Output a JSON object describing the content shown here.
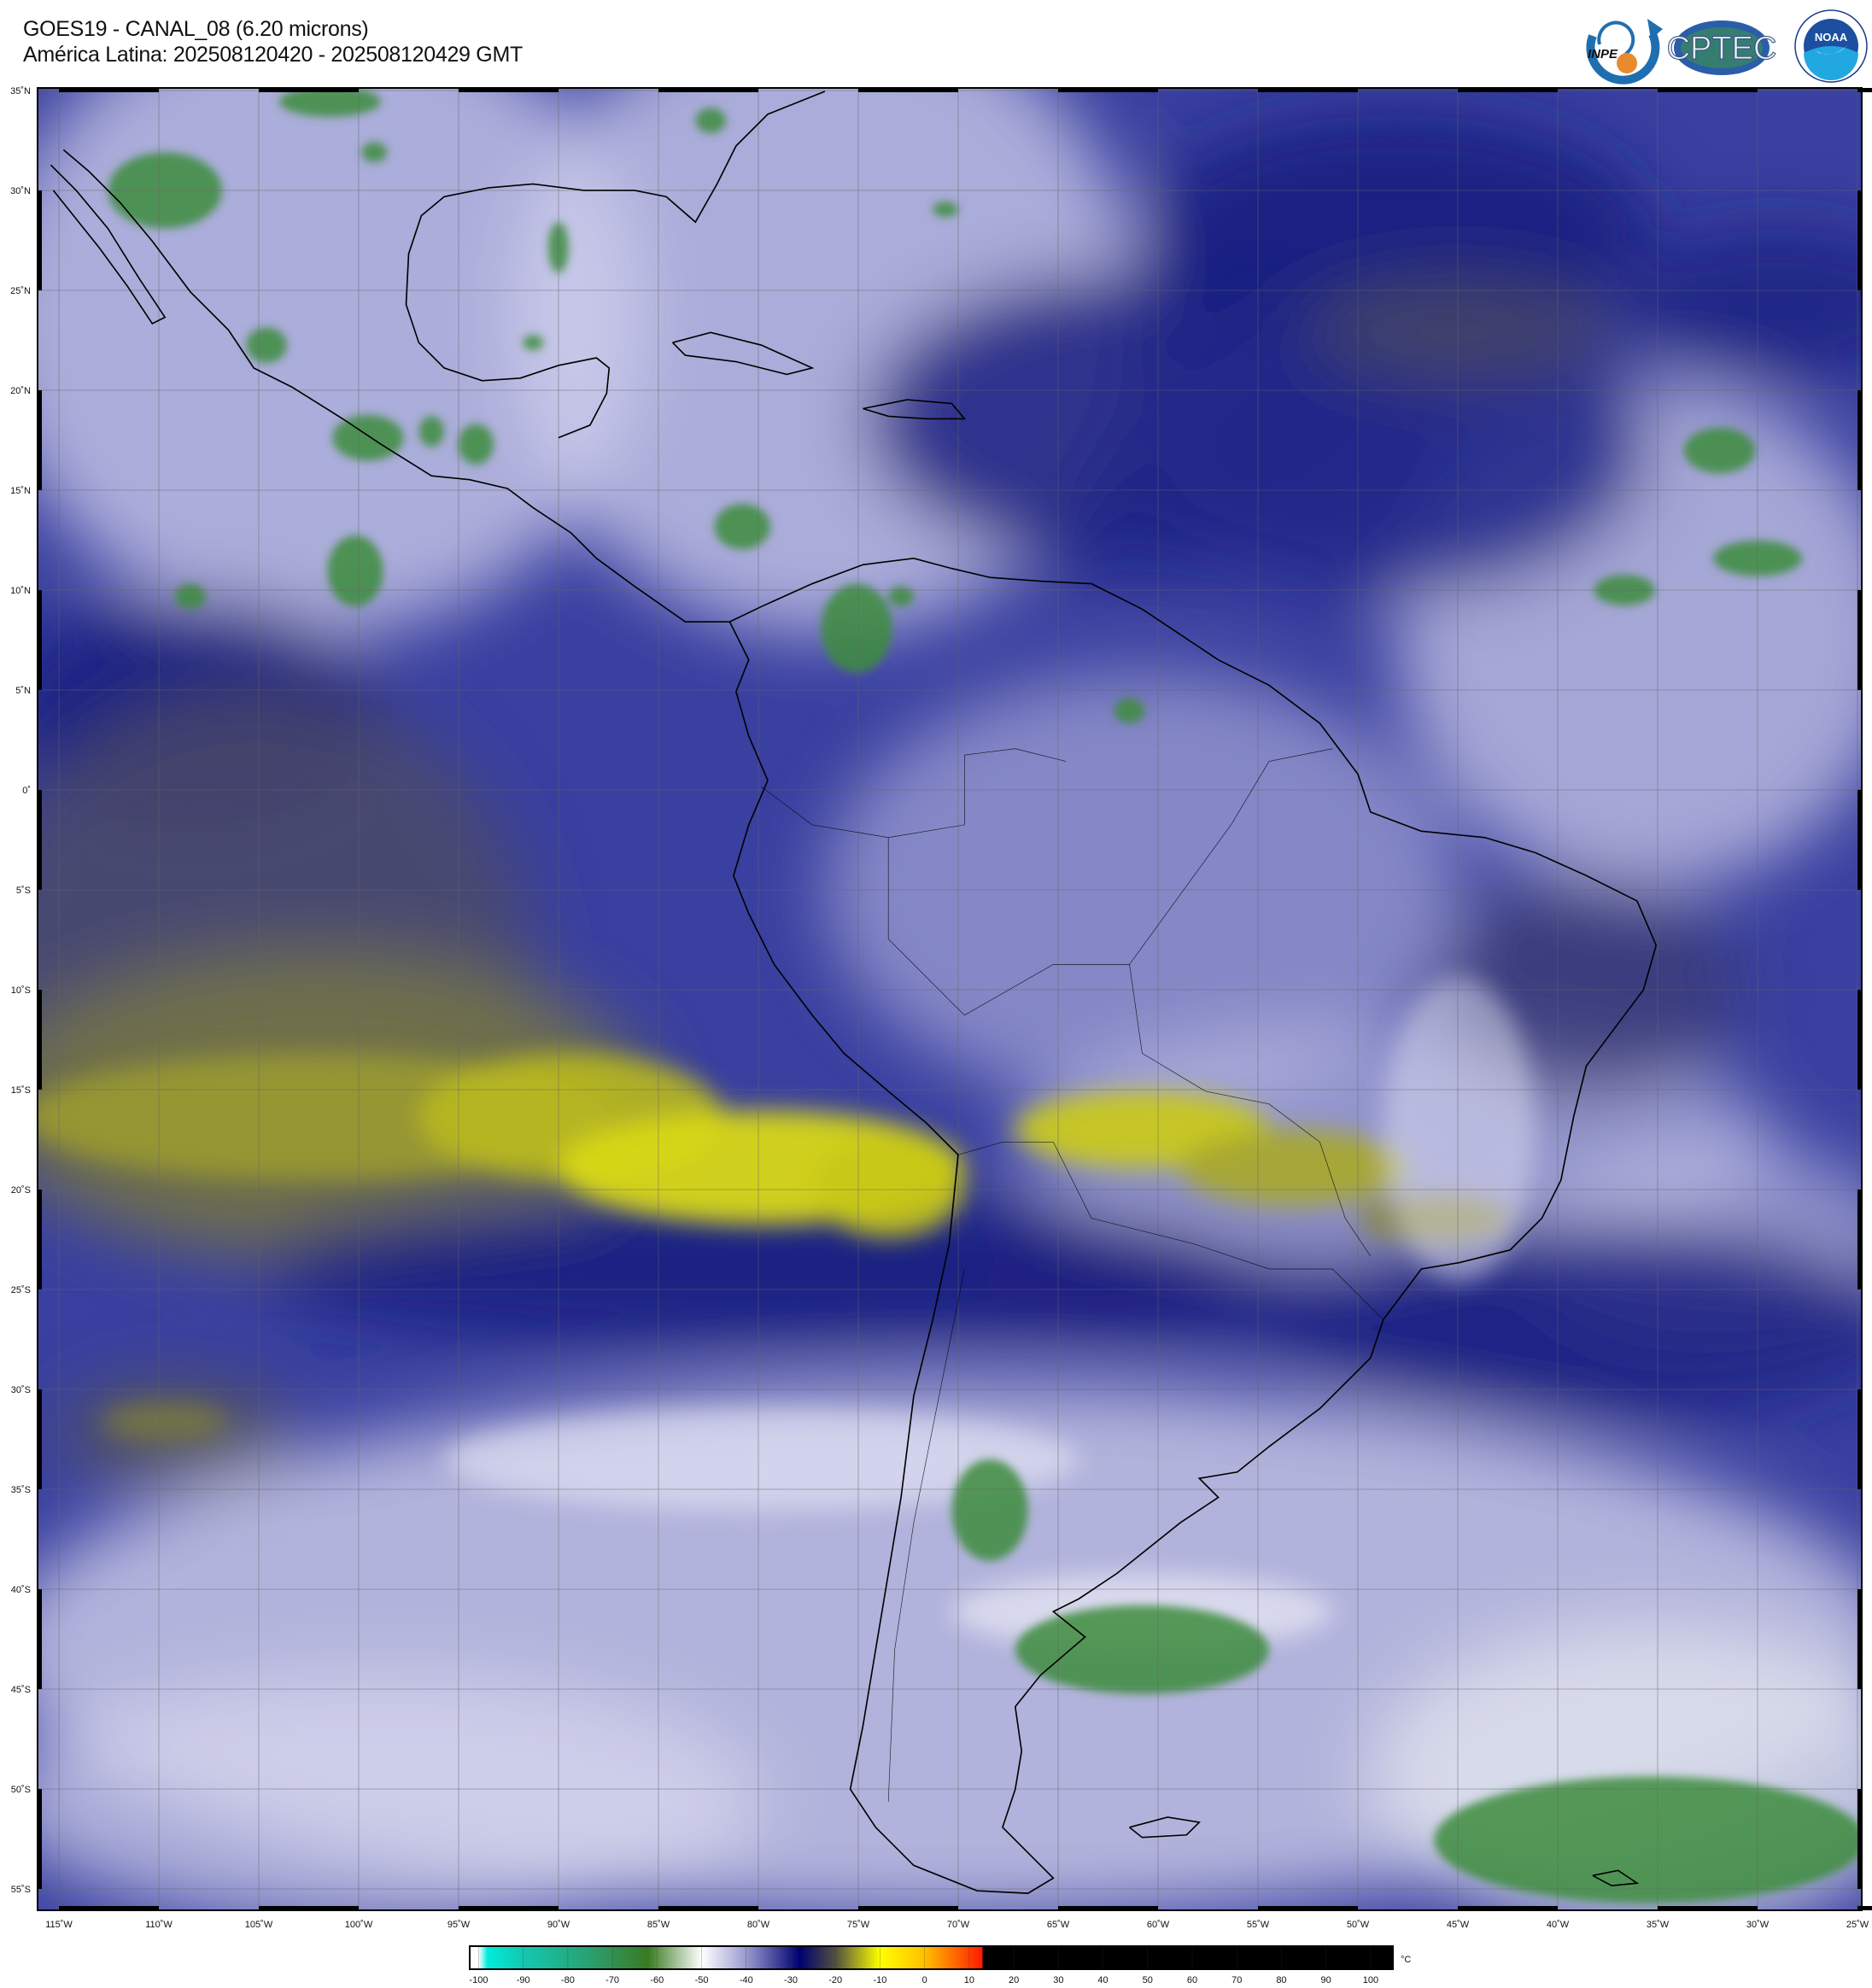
{
  "header": {
    "title": "GOES19 - CANAL_08 (6.20 microns)",
    "subtitle": "América Latina: 202508120420 - 202508120429 GMT"
  },
  "logos": [
    {
      "name": "INPE",
      "text": "INPE"
    },
    {
      "name": "CPTEC",
      "text": "CPTEC"
    },
    {
      "name": "NOAA",
      "text": "NOAA"
    }
  ],
  "map": {
    "lat_labels": [
      "35˚N",
      "30˚N",
      "25˚N",
      "20˚N",
      "15˚N",
      "10˚N",
      "5˚N",
      "0˚",
      "5˚S",
      "10˚S",
      "15˚S",
      "20˚S",
      "25˚S",
      "30˚S",
      "35˚S",
      "40˚S",
      "45˚S",
      "50˚S",
      "55˚S"
    ],
    "lon_labels": [
      "115˚W",
      "110˚W",
      "105˚W",
      "100˚W",
      "95˚W",
      "90˚W",
      "85˚W",
      "80˚W",
      "75˚W",
      "70˚W",
      "65˚W",
      "60˚W",
      "55˚W",
      "50˚W",
      "45˚W",
      "40˚W",
      "35˚W",
      "30˚W",
      "25˚W"
    ],
    "colors": {
      "background_water_vapor": "#2e3490",
      "dry_yellow": "#d8d818",
      "cloud_white": "#e8e8f4",
      "cold_green": "#3c8c3c"
    }
  },
  "colorbar": {
    "ticks": [
      "-100",
      "-90",
      "-80",
      "-70",
      "-60",
      "-50",
      "-40",
      "-30",
      "-20",
      "-10",
      "0",
      "10",
      "20",
      "30",
      "40",
      "50",
      "60",
      "70",
      "80",
      "90",
      "100"
    ],
    "unit": "°C",
    "stops": [
      {
        "value": -100,
        "color": "#ffffff"
      },
      {
        "value": -98,
        "color": "#00ecdc"
      },
      {
        "value": -90,
        "color": "#14c8b0"
      },
      {
        "value": -75,
        "color": "#2aa070"
      },
      {
        "value": -62,
        "color": "#3a7a22"
      },
      {
        "value": -50,
        "color": "#ffffff"
      },
      {
        "value": -40,
        "color": "#9a9ad0"
      },
      {
        "value": -28,
        "color": "#000070"
      },
      {
        "value": -20,
        "color": "#505040"
      },
      {
        "value": -10,
        "color": "#ffff00"
      },
      {
        "value": 0,
        "color": "#ffc000"
      },
      {
        "value": 13,
        "color": "#ff1800"
      },
      {
        "value": 13.01,
        "color": "#000000"
      },
      {
        "value": 105,
        "color": "#000000"
      }
    ]
  }
}
